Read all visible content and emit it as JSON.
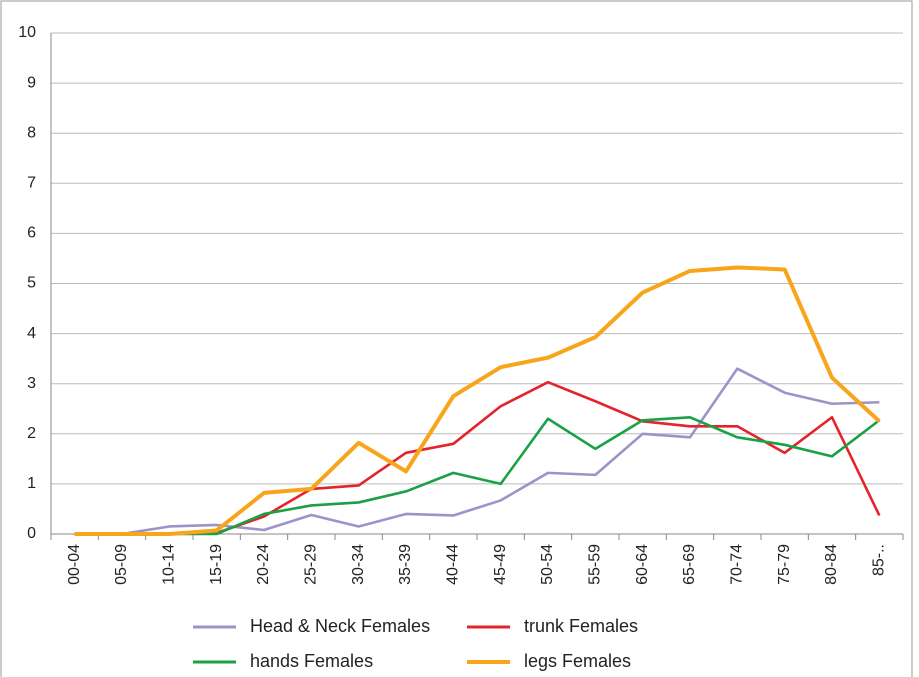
{
  "chart_data": {
    "type": "line",
    "categories": [
      "00-04",
      "05-09",
      "10-14",
      "15-19",
      "20-24",
      "25-29",
      "30-34",
      "35-39",
      "40-44",
      "45-49",
      "50-54",
      "55-59",
      "60-64",
      "65-69",
      "70-74",
      "75-79",
      "80-84",
      "85-.."
    ],
    "series": [
      {
        "name": "Head & Neck  Females",
        "color": "#9b93c9",
        "values": [
          0,
          0,
          0.15,
          0.18,
          0.08,
          0.38,
          0.15,
          0.4,
          0.37,
          0.67,
          1.22,
          1.18,
          2.0,
          1.93,
          3.3,
          2.82,
          2.6,
          2.63
        ]
      },
      {
        "name": "trunk Females",
        "color": "#e3242b",
        "values": [
          0,
          0,
          0,
          0.02,
          0.35,
          0.9,
          0.97,
          1.62,
          1.8,
          2.55,
          3.03,
          2.65,
          2.25,
          2.15,
          2.15,
          1.62,
          2.33,
          0.37
        ]
      },
      {
        "name": "hands Females",
        "color": "#1aa146",
        "values": [
          0,
          0,
          0,
          0,
          0.4,
          0.57,
          0.63,
          0.85,
          1.22,
          1.0,
          2.3,
          1.7,
          2.27,
          2.33,
          1.93,
          1.78,
          1.55,
          2.27
        ]
      },
      {
        "name": "legs Females",
        "color": "#f8a51b",
        "values": [
          0,
          0,
          0,
          0.07,
          0.82,
          0.9,
          1.82,
          1.25,
          2.75,
          3.33,
          3.52,
          3.93,
          4.82,
          5.25,
          5.32,
          5.28,
          3.12,
          2.25
        ]
      }
    ],
    "ylim": [
      0,
      10
    ],
    "yticks": [
      0,
      1,
      2,
      3,
      4,
      5,
      6,
      7,
      8,
      9,
      10
    ],
    "grid": true,
    "legend": "bottom"
  }
}
